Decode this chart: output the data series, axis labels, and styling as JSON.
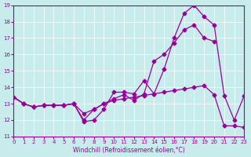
{
  "xlabel": "Windchill (Refroidissement éolien,°C)",
  "ylabel": "",
  "bg_color": "#c8ecec",
  "line_color": "#990099",
  "xlim": [
    0,
    23
  ],
  "ylim": [
    11,
    19
  ],
  "yticks": [
    11,
    12,
    13,
    14,
    15,
    16,
    17,
    18,
    19
  ],
  "xticks": [
    0,
    1,
    2,
    3,
    4,
    5,
    6,
    7,
    8,
    9,
    10,
    11,
    12,
    13,
    14,
    15,
    16,
    17,
    18,
    19,
    20,
    21,
    22,
    23
  ],
  "line1_x": [
    0,
    1,
    2,
    3,
    4,
    5,
    6,
    7,
    8,
    9,
    10,
    11,
    12,
    13,
    14,
    15,
    16,
    17,
    18,
    19,
    20,
    21,
    22,
    23
  ],
  "line1_y": [
    13.4,
    13.0,
    12.8,
    12.9,
    12.9,
    12.9,
    13.0,
    11.9,
    12.0,
    12.65,
    13.7,
    13.7,
    13.6,
    14.4,
    13.6,
    15.1,
    17.0,
    18.5,
    19.0,
    18.3,
    17.8,
    13.5,
    12.0,
    13.5
  ],
  "line2_x": [
    0,
    1,
    2,
    3,
    4,
    5,
    6,
    7,
    8,
    9,
    10,
    11,
    12,
    13,
    14,
    15,
    16,
    17,
    18,
    19,
    20,
    21,
    22,
    23
  ],
  "line2_y": [
    13.4,
    13.0,
    12.8,
    12.9,
    12.9,
    12.9,
    13.0,
    12.4,
    12.65,
    13.0,
    13.2,
    13.3,
    13.4,
    13.5,
    13.6,
    13.7,
    13.8,
    13.9,
    14.0,
    14.1,
    13.55,
    11.65,
    11.65,
    11.55
  ],
  "line3_x": [
    0,
    1,
    2,
    3,
    4,
    5,
    6,
    7,
    8,
    9,
    10,
    11,
    12,
    13,
    14,
    15,
    16,
    17,
    18,
    19,
    20
  ],
  "line3_y": [
    13.4,
    13.0,
    12.8,
    12.9,
    12.9,
    12.9,
    13.0,
    12.0,
    12.65,
    13.0,
    13.3,
    13.55,
    13.2,
    13.6,
    15.6,
    16.0,
    16.7,
    17.5,
    17.8,
    17.0,
    16.8
  ]
}
